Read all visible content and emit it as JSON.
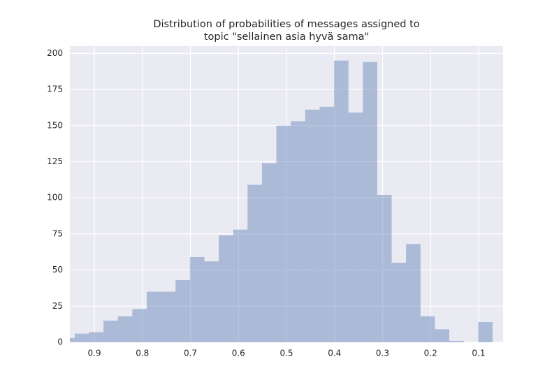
{
  "chart_data": {
    "type": "histogram",
    "title": [
      "Distribution of probabilities of messages assigned to",
      "topic \"sellainen asia hyvä sama\""
    ],
    "bins": [
      0.071,
      0.101,
      0.131,
      0.161,
      0.191,
      0.221,
      0.251,
      0.281,
      0.311,
      0.341,
      0.371,
      0.401,
      0.431,
      0.461,
      0.491,
      0.521,
      0.551,
      0.581,
      0.611,
      0.641,
      0.671,
      0.701,
      0.731,
      0.761,
      0.791,
      0.821,
      0.851,
      0.881,
      0.911,
      0.941,
      0.971
    ],
    "values": [
      14,
      0,
      1,
      9,
      18,
      68,
      55,
      102,
      194,
      159,
      195,
      163,
      161,
      153,
      150,
      124,
      109,
      78,
      74,
      56,
      59,
      43,
      35,
      35,
      23,
      18,
      15,
      7,
      6,
      3
    ],
    "color": "#4c72b0",
    "alpha": 0.4,
    "xlim": [
      0.951,
      0.049
    ],
    "xticks": [
      0.9,
      0.8,
      0.7,
      0.6,
      0.5,
      0.4,
      0.3,
      0.2,
      0.1
    ],
    "ylim": [
      0,
      205
    ],
    "yticks": [
      0,
      25,
      50,
      75,
      100,
      125,
      150,
      175,
      200
    ],
    "grid": true
  }
}
